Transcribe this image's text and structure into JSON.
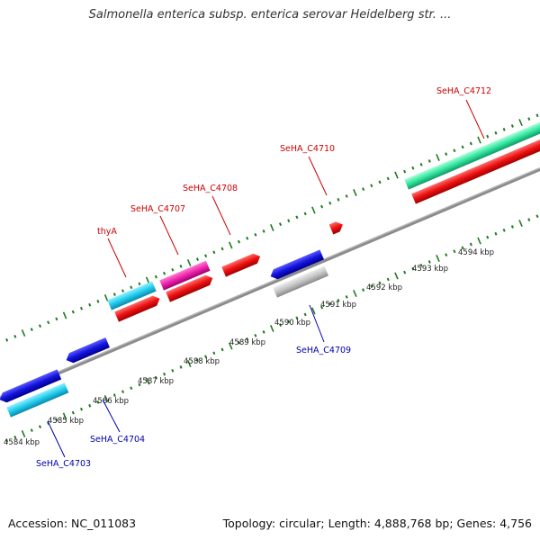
{
  "title": "Salmonella enterica subsp. enterica serovar Heidelberg str. ...",
  "footer": {
    "accession": "Accession: NC_011083",
    "summary": "Topology: circular; Length: 4,888,768 bp; Genes: 4,756"
  },
  "colors": {
    "backbone": "#8a8a8a",
    "tick_outer": "#1f7a1f",
    "forward_label": "#cc0000",
    "reverse_label": "#0000aa"
  },
  "scale_labels": [
    "4584 kbp",
    "4585 kbp",
    "4586 kbp",
    "4587 kbp",
    "4588 kbp",
    "4589 kbp",
    "4590 kbp",
    "4591 kbp",
    "4592 kbp",
    "4593 kbp",
    "4594 kbp"
  ],
  "gene_labels": {
    "thyA": "thyA",
    "c4707": "SeHA_C4707",
    "c4708": "SeHA_C4708",
    "c4710": "SeHA_C4710",
    "c4712": "SeHA_C4712",
    "c4703": "SeHA_C4703",
    "c4704": "SeHA_C4704",
    "c4709": "SeHA_C4709"
  }
}
